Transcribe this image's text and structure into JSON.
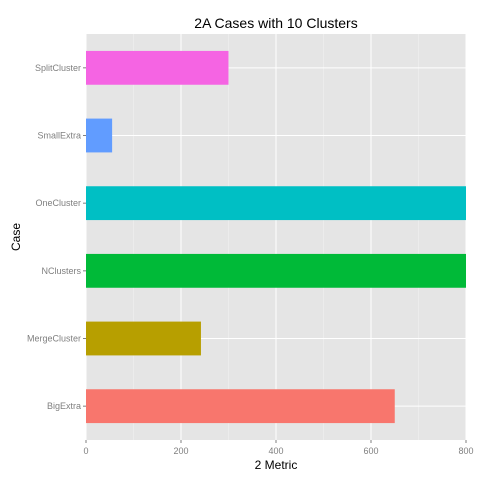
{
  "chart_data": {
    "type": "bar",
    "orientation": "horizontal",
    "title": "2A Cases with 10 Clusters",
    "xlabel": "2 Metric",
    "ylabel": "Case",
    "xlim": [
      0,
      800
    ],
    "xticks": [
      0,
      200,
      400,
      600,
      800
    ],
    "categories": [
      "BigExtra",
      "MergeCluster",
      "NClusters",
      "OneCluster",
      "SmallExtra",
      "SplitCluster"
    ],
    "values": [
      650,
      242,
      800,
      800,
      55,
      300
    ],
    "colors": [
      "#F8766D",
      "#B79F00",
      "#00BA38",
      "#00BFC4",
      "#619CFF",
      "#F564E3"
    ],
    "panel_background": "#E5E5E5",
    "grid": true,
    "legend": "none"
  }
}
